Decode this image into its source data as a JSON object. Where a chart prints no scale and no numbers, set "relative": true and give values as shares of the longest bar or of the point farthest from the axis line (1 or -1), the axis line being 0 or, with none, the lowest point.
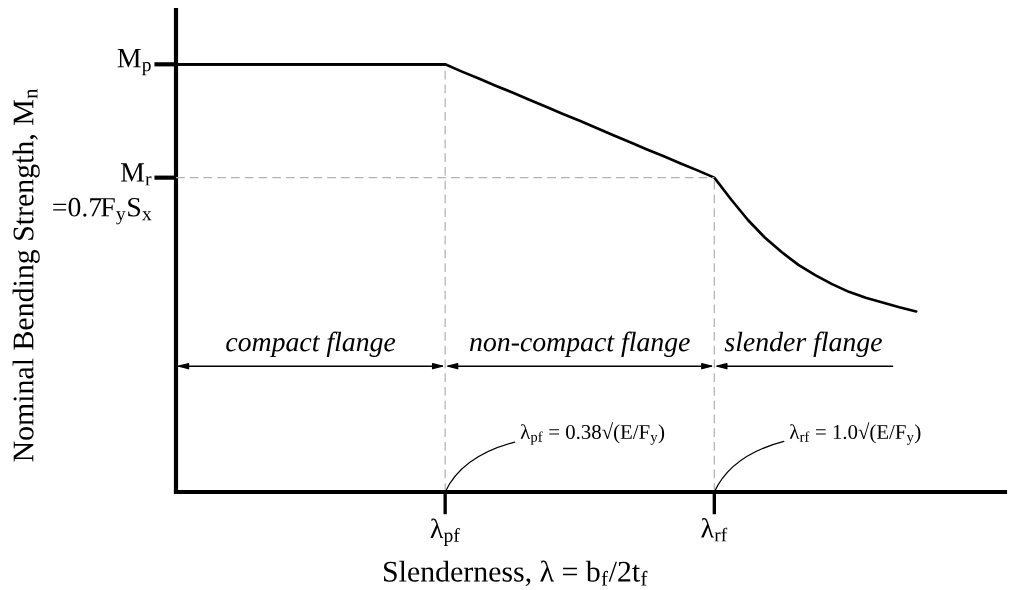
{
  "chart_data": {
    "type": "line",
    "relative": true,
    "xlabel": "Slenderness, λ = b$_{f}$/2t$_{f}$",
    "ylabel": "Nominal Bending Strength, M$_{n}$",
    "categories": [
      null,
      null,
      null,
      null,
      null,
      null,
      null,
      null,
      null,
      null,
      null,
      null,
      null,
      null,
      null,
      null,
      "λ$_{pf}$",
      null,
      null,
      null,
      null,
      null,
      null,
      null,
      null,
      null,
      null,
      null,
      null,
      null,
      null,
      null,
      "λ$_{rf}$",
      null,
      null,
      null,
      null,
      null,
      null,
      null,
      null,
      null,
      null,
      null,
      null
    ],
    "series": [
      {
        "color": "#000000",
        "values": [
          1,
          1,
          1,
          1,
          1,
          1,
          1,
          1,
          1,
          1,
          1,
          1,
          1,
          1,
          1,
          1,
          1,
          0.983,
          0.967,
          0.95,
          0.934,
          0.917,
          0.901,
          0.884,
          0.868,
          0.851,
          0.834,
          0.818,
          0.801,
          0.785,
          0.768,
          0.752,
          0.735,
          0.684,
          0.636,
          0.595,
          0.561,
          0.531,
          0.507,
          0.486,
          0.468,
          0.454,
          0.443,
          0.432,
          0.422
        ]
      }
    ],
    "ref_lines": [
      {
        "axis": "y",
        "value": 1,
        "label": "M$_{p}$",
        "line_style": "solid",
        "color": "#000000"
      },
      {
        "axis": "y",
        "value": 0.735,
        "label": "M$_{r}$\n=0.7F$_{y}$S$_{x}$",
        "line_style": "dashed",
        "color": "#b3b3b3"
      }
    ],
    "annotations": [
      "compact flange",
      "non-compact flange",
      "slender flange",
      "λ$_{pf}$ = 0.38√(E/F$_{y}$)",
      "λ$_{rf}$ = 1.0√(E/F$_{y}$)"
    ],
    "grid": "x",
    "marker": "none",
    "line_style": "solid"
  }
}
